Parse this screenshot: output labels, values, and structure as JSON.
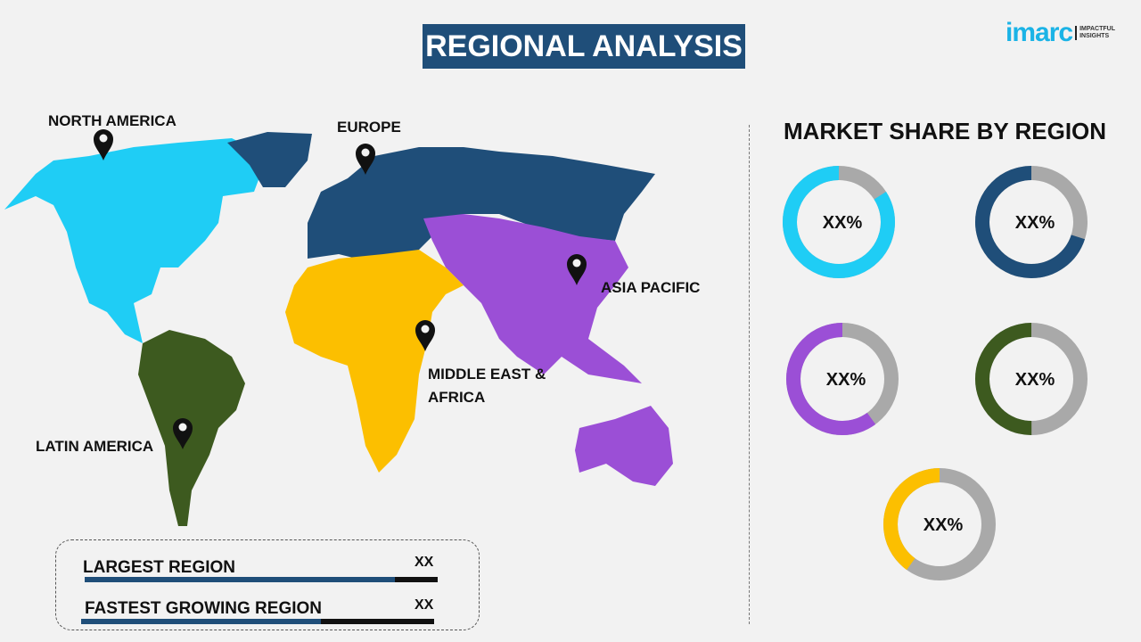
{
  "header": {
    "title": "REGIONAL ANALYSIS",
    "logo": {
      "word": "imarc",
      "tagline_1": "IMPACTFUL",
      "tagline_2": "INSIGHTS"
    }
  },
  "map": {
    "regions": [
      {
        "name": "NORTH AMERICA",
        "color": "#1fcdf5"
      },
      {
        "name": "EUROPE",
        "color": "#1f4e79"
      },
      {
        "name": "ASIA PACIFIC",
        "color": "#9b4fd6"
      },
      {
        "name": "MIDDLE EAST &",
        "name_2": "AFRICA",
        "color": "#fcbf00"
      },
      {
        "name": "LATIN AMERICA",
        "color": "#3d5a1f"
      }
    ]
  },
  "summary": {
    "largest_label": "LARGEST REGION",
    "largest_value": "XX",
    "largest_bar_fraction": 0.88,
    "fastest_label": "FASTEST GROWING REGION",
    "fastest_value": "XX",
    "fastest_bar_fraction": 0.68
  },
  "chart_data": {
    "type": "pie",
    "title": "MARKET SHARE BY REGION",
    "remainder_color": "#a9a9a9",
    "series": [
      {
        "label": "XX%",
        "fraction": 0.84,
        "color": "#1fcdf5"
      },
      {
        "label": "XX%",
        "fraction": 0.7,
        "color": "#1f4e79"
      },
      {
        "label": "XX%",
        "fraction": 0.6,
        "color": "#9b4fd6"
      },
      {
        "label": "XX%",
        "fraction": 0.5,
        "color": "#3d5a1f"
      },
      {
        "label": "XX%",
        "fraction": 0.4,
        "color": "#fcbf00"
      }
    ]
  }
}
